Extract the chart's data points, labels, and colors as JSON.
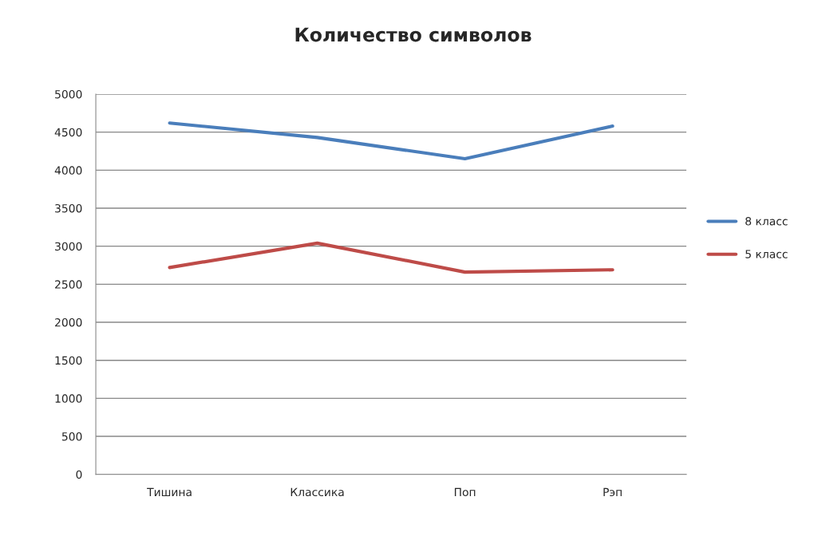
{
  "chart_data": {
    "type": "line",
    "title": "Количество символов",
    "categories": [
      "Тишина",
      "Классика",
      "Поп",
      "Рэп"
    ],
    "series": [
      {
        "name": "8 класс",
        "color": "#4a7ebb",
        "values": [
          4620,
          4430,
          4150,
          4580
        ]
      },
      {
        "name": "5 класс",
        "color": "#be4b48",
        "values": [
          2720,
          3040,
          2660,
          2690
        ]
      }
    ],
    "ylim": [
      0,
      5000
    ],
    "yticks": [
      0,
      500,
      1000,
      1500,
      2000,
      2500,
      3000,
      3500,
      4000,
      4500,
      5000
    ],
    "grid": "y",
    "legend": "right",
    "marker": "none",
    "line_style": "solid"
  }
}
